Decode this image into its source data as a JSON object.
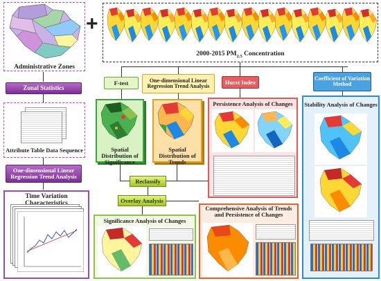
{
  "left_column": {
    "admin_zones_label": "Administrative Zones",
    "zonal_statistics_label": "Zonal Statistics",
    "attribute_table_label": "Attribute Table Data Sequence",
    "odlra_label": "One-dimensional Linear Regression Trend Analysis",
    "time_variation_label": "Time Variation Characteristics"
  },
  "plus_sign": "+",
  "top_series": {
    "title_prefix": "2000-2015 PM",
    "title_sub": "2.5",
    "title_suffix": " Concentration",
    "map_count": 16
  },
  "methods": {
    "ftest": "F-test",
    "odlra": "One-dimensional Linear Regression Trend Analysis",
    "hurst": "Hurst Index",
    "cv": "Coefficient of Variation Method"
  },
  "panels": {
    "significance": "Spatial Distribution of Significance",
    "trends": "Spatial Distribution of Trends",
    "persistence": "Persistence  Analysis of Changes",
    "stability": "Stability Analysis of Changes",
    "sig_changes": "Significance Analysis of Changes",
    "comprehensive": "Comprehensive Analysis of Trends and Persistence of Changes"
  },
  "steps": {
    "reclassify": "Reclassify",
    "overlay": "Overlay Analysis"
  },
  "colors": {
    "purple": "#8a3aa6",
    "ftest_border": "#3aa63a",
    "odlra_border": "#e0a21a",
    "hurst_fill": "#e05a5a",
    "cv_border": "#2a8ad6",
    "sig_border": "#8cc63f",
    "comp_border": "#e8622a"
  }
}
